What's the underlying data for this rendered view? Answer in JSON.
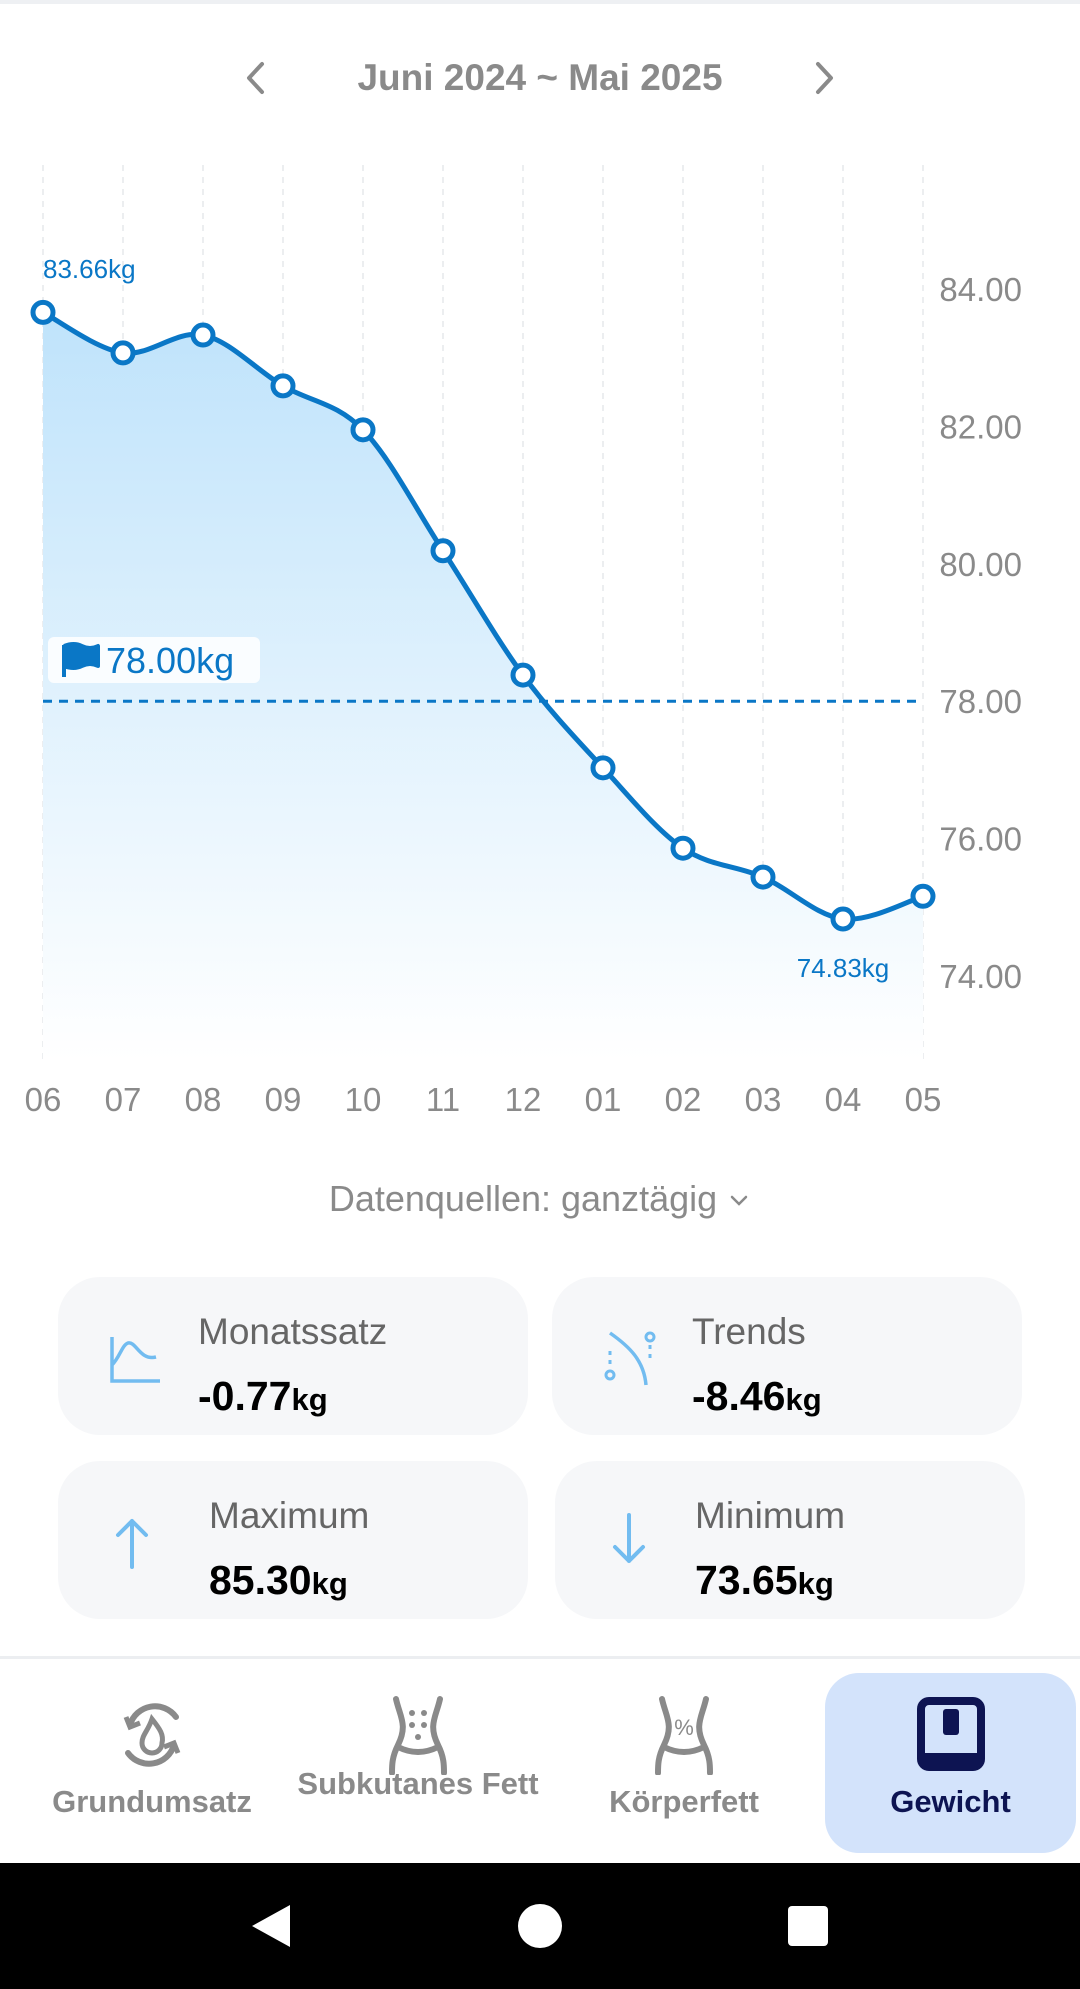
{
  "header": {
    "title": "Juni 2024 ~ Mai 2025",
    "prev_icon": "chevron-left-icon",
    "next_icon": "chevron-right-icon"
  },
  "chart_data": {
    "type": "line",
    "categories": [
      "06",
      "07",
      "08",
      "09",
      "10",
      "11",
      "12",
      "01",
      "02",
      "03",
      "04",
      "05"
    ],
    "values": [
      83.66,
      83.07,
      83.33,
      82.59,
      81.95,
      80.19,
      78.38,
      77.03,
      75.86,
      75.44,
      74.83,
      75.16
    ],
    "y_ticks": [
      "84.00",
      "82.00",
      "80.00",
      "78.00",
      "76.00",
      "74.00"
    ],
    "ylim": [
      72.6,
      85.5
    ],
    "goal": {
      "value": 78.0,
      "label": "78.00kg"
    },
    "max_label": "83.66kg",
    "min_label": "74.83kg",
    "color": "#0a77c6",
    "grid": "vertical dashed"
  },
  "source": {
    "label": "Datenquellen: ganztägig"
  },
  "stats": [
    {
      "label": "Monatssatz",
      "value": "-0.77",
      "unit": "kg",
      "icon": "area-chart-icon"
    },
    {
      "label": "Trends",
      "value": "-8.46",
      "unit": "kg",
      "icon": "trend-path-icon"
    },
    {
      "label": "Maximum",
      "value": "85.30",
      "unit": "kg",
      "icon": "arrow-up-icon"
    },
    {
      "label": "Minimum",
      "value": "73.65",
      "unit": "kg",
      "icon": "arrow-down-icon"
    }
  ],
  "nav": [
    {
      "label": "Grundumsatz"
    },
    {
      "label": "Subkutanes Fett"
    },
    {
      "label": "Körperfett"
    },
    {
      "label": "Gewicht",
      "active": true
    }
  ]
}
